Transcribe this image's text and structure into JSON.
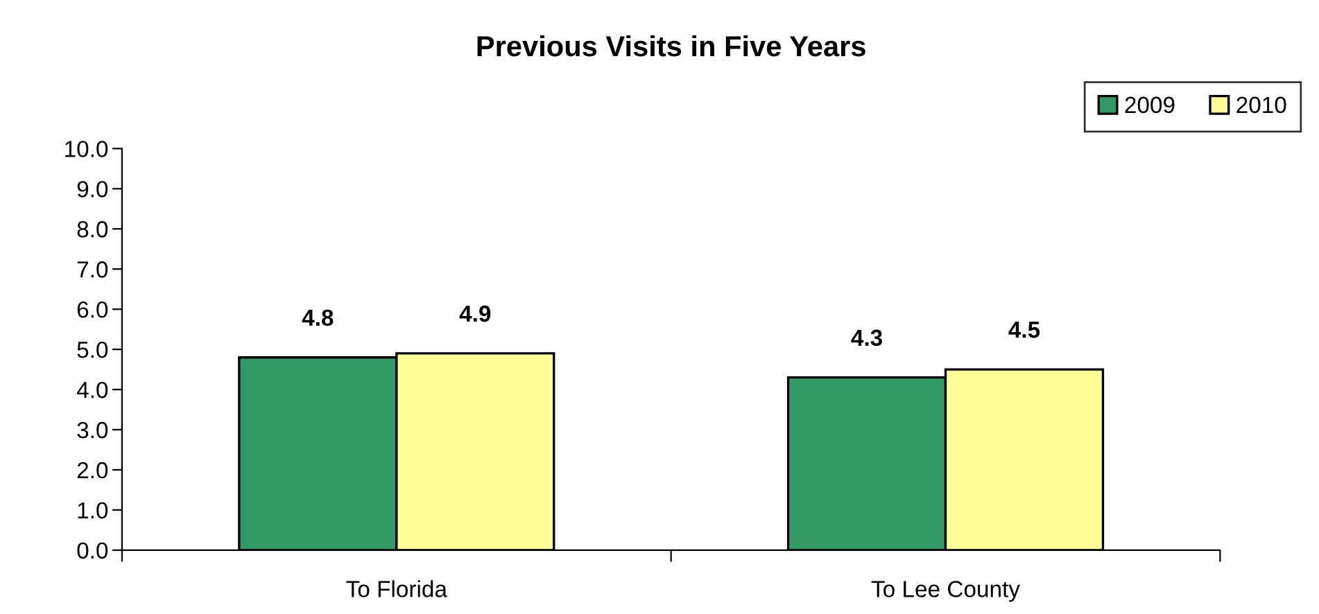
{
  "chart_data": {
    "type": "bar",
    "title": "Previous Visits in Five Years",
    "categories": [
      "To Florida",
      "To Lee County"
    ],
    "series": [
      {
        "name": "2009",
        "color": "#339966",
        "values": [
          4.8,
          4.3
        ]
      },
      {
        "name": "2010",
        "color": "#ffff99",
        "values": [
          4.9,
          4.5
        ]
      }
    ],
    "ylim": [
      0,
      10
    ],
    "yticks": [
      {
        "value": 0,
        "label": "0.0"
      },
      {
        "value": 1,
        "label": "1.0"
      },
      {
        "value": 2,
        "label": "2.0"
      },
      {
        "value": 3,
        "label": "3.0"
      },
      {
        "value": 4,
        "label": "4.0"
      },
      {
        "value": 5,
        "label": "5.0"
      },
      {
        "value": 6,
        "label": "6.0"
      },
      {
        "value": 7,
        "label": "7.0"
      },
      {
        "value": 8,
        "label": "8.0"
      },
      {
        "value": 9,
        "label": "9.0"
      },
      {
        "value": 10,
        "label": "10.0"
      }
    ],
    "data_labels": true,
    "grid": false,
    "legend": "top right"
  }
}
